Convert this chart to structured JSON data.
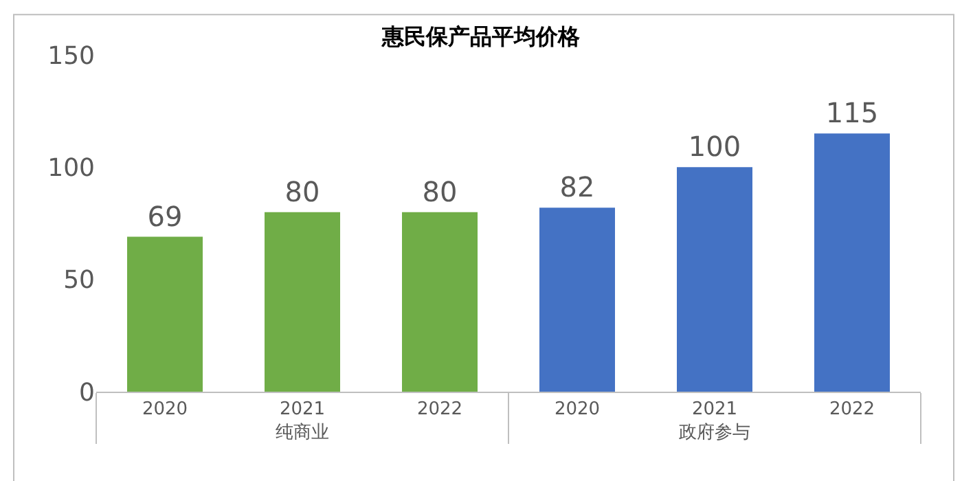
{
  "chart_data": {
    "type": "bar",
    "title": "惠民保产品平均价格",
    "categories": [
      "2020",
      "2021",
      "2022",
      "2020",
      "2021",
      "2022"
    ],
    "series": [
      {
        "name": "纯商业",
        "color": "#70ad47",
        "values": [
          69,
          80,
          80,
          null,
          null,
          null
        ]
      },
      {
        "name": "政府参与",
        "color": "#4472c4",
        "values": [
          null,
          null,
          null,
          82,
          100,
          115
        ]
      }
    ],
    "ylim": [
      0,
      150
    ],
    "yticks": [
      0,
      50,
      100,
      150
    ],
    "grid": false,
    "legend": false,
    "data_labels": true
  }
}
